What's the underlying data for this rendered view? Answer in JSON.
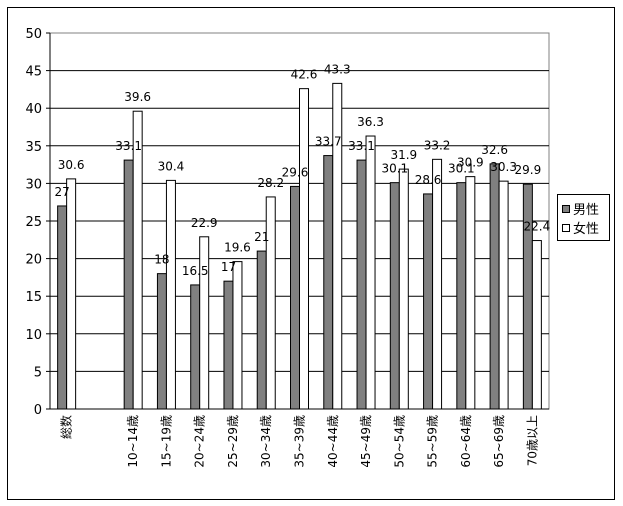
{
  "chart_data": {
    "type": "bar",
    "categories": [
      "総数",
      "",
      "10~14歳",
      "15~19歳",
      "20~24歳",
      "25~29歳",
      "30~34歳",
      "35~39歳",
      "40~44歳",
      "45~49歳",
      "50~54歳",
      "55~59歳",
      "60~64歳",
      "65~69歳",
      "70歳以上"
    ],
    "series": [
      {
        "name": "男性",
        "values": [
          27,
          null,
          33.1,
          18,
          16.5,
          17,
          21,
          29.6,
          33.7,
          33.1,
          30.1,
          28.6,
          30.1,
          32.6,
          29.9
        ],
        "color": "#808080"
      },
      {
        "name": "女性",
        "values": [
          30.6,
          null,
          39.6,
          30.4,
          22.9,
          19.6,
          28.2,
          42.6,
          43.3,
          36.3,
          31.9,
          33.2,
          30.9,
          30.3,
          22.4
        ],
        "color": "#ffffff"
      }
    ],
    "y_ticks": [
      "0",
      "5",
      "10",
      "15",
      "20",
      "25",
      "30",
      "35",
      "40",
      "45",
      "50"
    ],
    "ylim": [
      0,
      50
    ],
    "grid": true,
    "legend_position": "right",
    "title": "",
    "xlabel": "",
    "ylabel": ""
  }
}
